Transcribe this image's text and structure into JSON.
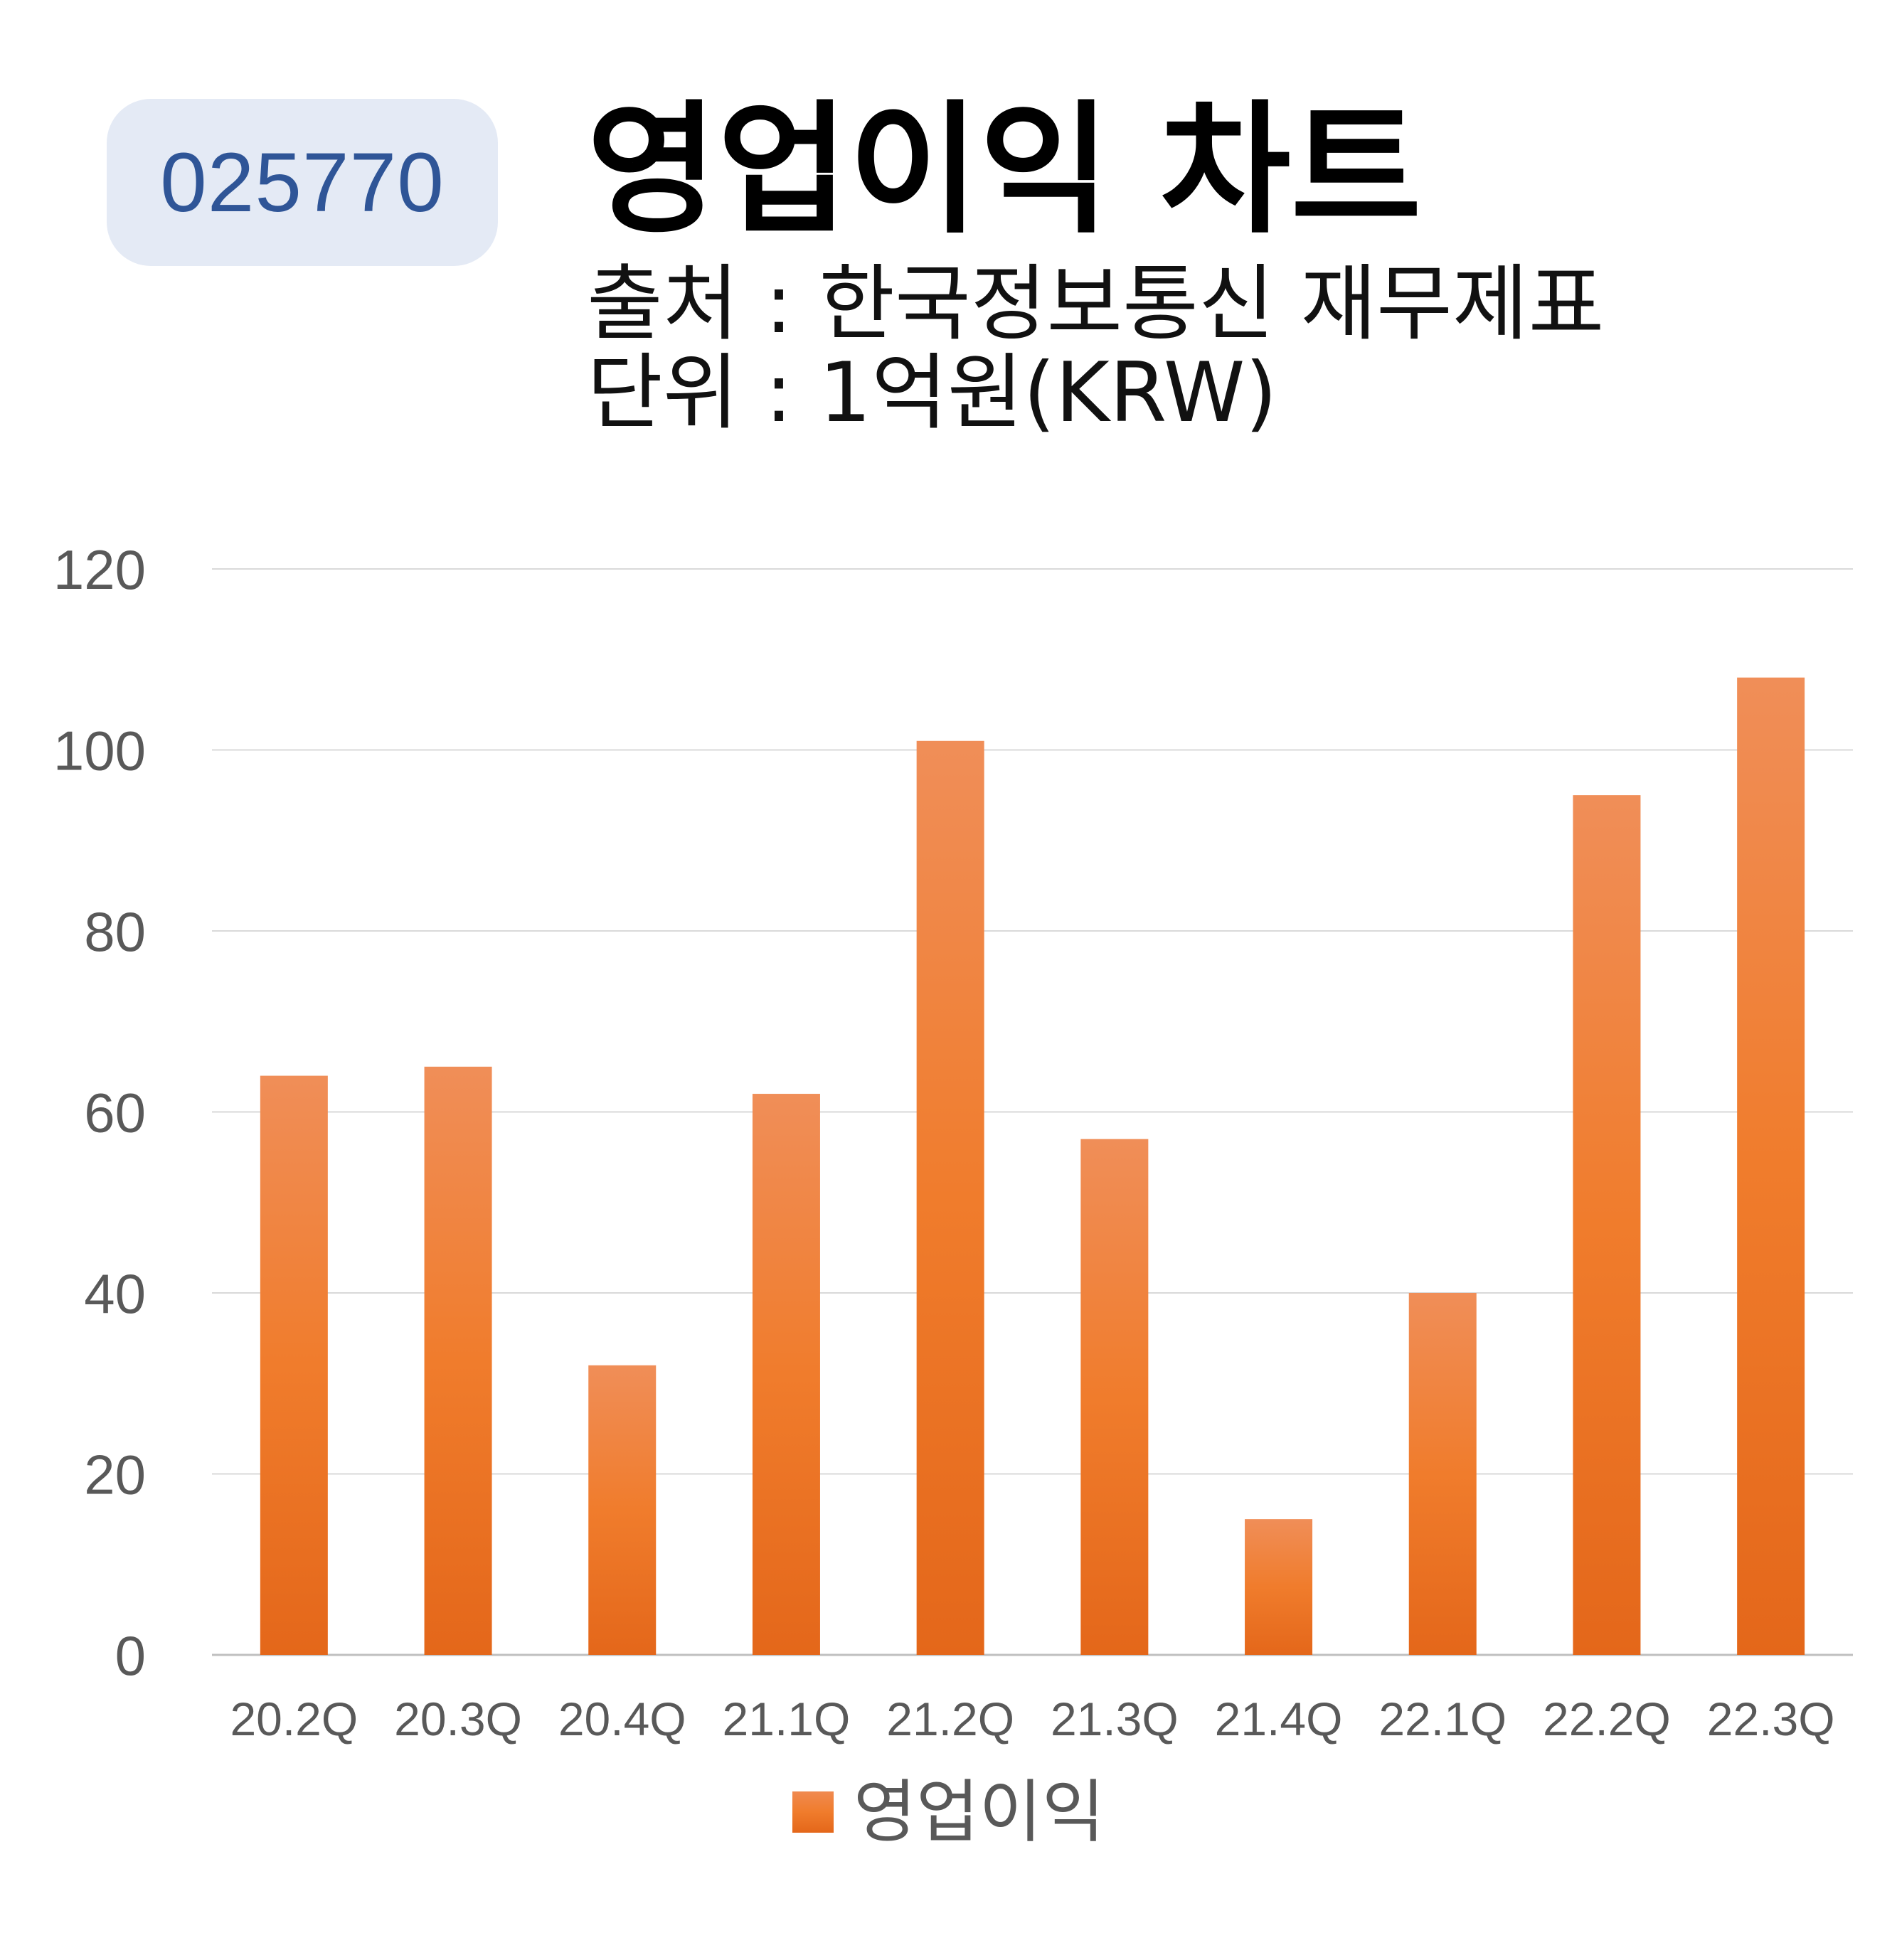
{
  "ticker": "025770",
  "title": "영업이익 차트",
  "source_line": "출처 : 한국정보통신 재무제표",
  "unit_line": "단위 : 1억원(KRW)",
  "colors": {
    "bar_top": "#f08e58",
    "bar_mid": "#f07c2c",
    "bar_bottom": "#e4671a",
    "grid": "#d9d9d9",
    "axis_text": "#595959",
    "badge_bg": "#e4eaf5",
    "badge_text": "#2f5597"
  },
  "chart_data": {
    "type": "bar",
    "categories": [
      "20.2Q",
      "20.3Q",
      "20.4Q",
      "21.1Q",
      "21.2Q",
      "21.3Q",
      "21.4Q",
      "22.1Q",
      "22.2Q",
      "22.3Q"
    ],
    "series": [
      {
        "name": "영업이익",
        "values": [
          64,
          65,
          32,
          62,
          101,
          57,
          15,
          40,
          95,
          108
        ]
      }
    ],
    "ylim": [
      0,
      120
    ],
    "yticks": [
      0,
      20,
      40,
      60,
      80,
      100,
      120
    ],
    "grid": true,
    "legend_position": "bottom"
  }
}
